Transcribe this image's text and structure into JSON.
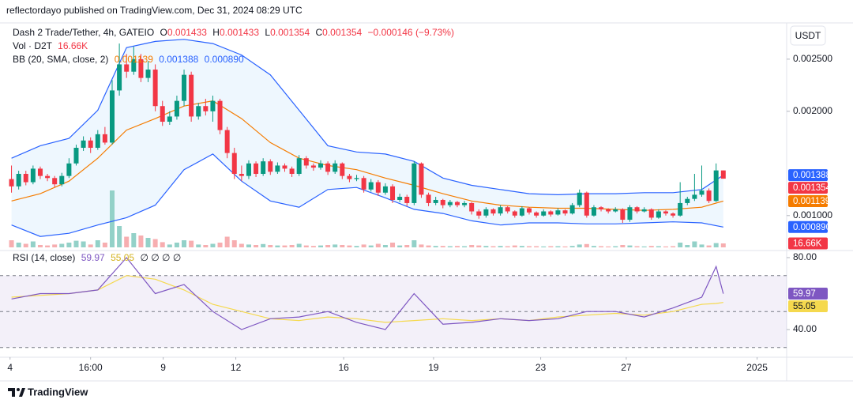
{
  "page": {
    "published": "reflectordayo published on TradingView.com, Dec 31, 2024 08:29 UTC",
    "brand": "TradingView"
  },
  "chart_data": [
    {
      "type": "candlestick",
      "title": "Dash 2 Trade/Tether, 4h, GATEIO",
      "ohlc_keys": [
        "O",
        "H",
        "L",
        "C"
      ],
      "change": "−0.000146 (−9.73%)",
      "currency": "USDT",
      "xlim": [
        -0.5,
        107.7
      ],
      "xticks": [
        {
          "value": -0.2,
          "label": "4"
        },
        {
          "value": 11,
          "label": "16:00"
        },
        {
          "value": 21.1,
          "label": "9"
        },
        {
          "value": 31.2,
          "label": "12"
        },
        {
          "value": 46.2,
          "label": "16"
        },
        {
          "value": 58.7,
          "label": "19"
        },
        {
          "value": 73.6,
          "label": "23"
        },
        {
          "value": 85.5,
          "label": "27"
        },
        {
          "value": 103.7,
          "label": "2025"
        }
      ],
      "ylim": [
        0.00068,
        0.00284
      ],
      "yticks": [
        {
          "value": 0.0025,
          "label": "0.002500"
        },
        {
          "value": 0.002,
          "label": "0.002000"
        },
        {
          "value": 0.001,
          "label": "0.001000"
        }
      ],
      "up_color": "#089981",
      "down_color": "#f23645",
      "candles": [
        [
          0.00135,
          0.00148,
          0.00122,
          0.00128
        ],
        [
          0.00128,
          0.00143,
          0.00125,
          0.0014
        ],
        [
          0.0014,
          0.00143,
          0.00129,
          0.00132
        ],
        [
          0.00132,
          0.00148,
          0.0013,
          0.00145
        ],
        [
          0.00145,
          0.00147,
          0.00135,
          0.00138
        ],
        [
          0.00138,
          0.0014,
          0.00133,
          0.00136
        ],
        [
          0.00136,
          0.00138,
          0.00127,
          0.0013
        ],
        [
          0.0013,
          0.00141,
          0.00128,
          0.00138
        ],
        [
          0.00138,
          0.00155,
          0.00136,
          0.0015
        ],
        [
          0.0015,
          0.00168,
          0.00148,
          0.00165
        ],
        [
          0.00165,
          0.00176,
          0.00162,
          0.00172
        ],
        [
          0.00172,
          0.00175,
          0.0016,
          0.00165
        ],
        [
          0.00165,
          0.00182,
          0.00163,
          0.00178
        ],
        [
          0.00178,
          0.00185,
          0.00168,
          0.0017
        ],
        [
          0.0017,
          0.0023,
          0.00168,
          0.0022
        ],
        [
          0.0022,
          0.00265,
          0.00215,
          0.00245
        ],
        [
          0.00245,
          0.00255,
          0.00232,
          0.00238
        ],
        [
          0.00238,
          0.00262,
          0.00235,
          0.0025
        ],
        [
          0.0025,
          0.00255,
          0.00228,
          0.00232
        ],
        [
          0.00232,
          0.00248,
          0.00228,
          0.0024
        ],
        [
          0.0024,
          0.00245,
          0.002,
          0.00205
        ],
        [
          0.00205,
          0.0021,
          0.00186,
          0.0019
        ],
        [
          0.0019,
          0.002,
          0.00187,
          0.00195
        ],
        [
          0.00195,
          0.00215,
          0.00192,
          0.0021
        ],
        [
          0.0021,
          0.0024,
          0.00205,
          0.00235
        ],
        [
          0.00235,
          0.00238,
          0.0019,
          0.00195
        ],
        [
          0.00195,
          0.00208,
          0.00192,
          0.00205
        ],
        [
          0.00205,
          0.00212,
          0.00196,
          0.002
        ],
        [
          0.002,
          0.00215,
          0.0019,
          0.0021
        ],
        [
          0.0021,
          0.00212,
          0.00178,
          0.00182
        ],
        [
          0.00182,
          0.00185,
          0.00155,
          0.0016
        ],
        [
          0.0016,
          0.00165,
          0.00135,
          0.0014
        ],
        [
          0.0014,
          0.00148,
          0.00133,
          0.00138
        ],
        [
          0.00138,
          0.00153,
          0.00135,
          0.0015
        ],
        [
          0.0015,
          0.00152,
          0.00137,
          0.0014
        ],
        [
          0.0014,
          0.00155,
          0.00138,
          0.00152
        ],
        [
          0.00152,
          0.00154,
          0.00139,
          0.00142
        ],
        [
          0.00142,
          0.00151,
          0.0014,
          0.00148
        ],
        [
          0.00148,
          0.0015,
          0.00142,
          0.00145
        ],
        [
          0.00145,
          0.00147,
          0.00137,
          0.0014
        ],
        [
          0.0014,
          0.00158,
          0.00138,
          0.00155
        ],
        [
          0.00155,
          0.00157,
          0.00145,
          0.00148
        ],
        [
          0.00148,
          0.0015,
          0.00143,
          0.00146
        ],
        [
          0.00146,
          0.00153,
          0.00144,
          0.0015
        ],
        [
          0.0015,
          0.00152,
          0.00139,
          0.00142
        ],
        [
          0.00142,
          0.00153,
          0.0014,
          0.0015
        ],
        [
          0.0015,
          0.00151,
          0.00135,
          0.00138
        ],
        [
          0.00138,
          0.0014,
          0.00132,
          0.00135
        ],
        [
          0.00135,
          0.00139,
          0.00133,
          0.00136
        ],
        [
          0.00136,
          0.00138,
          0.00122,
          0.00125
        ],
        [
          0.00125,
          0.00135,
          0.00123,
          0.00132
        ],
        [
          0.00132,
          0.00134,
          0.00119,
          0.00122
        ],
        [
          0.00122,
          0.00131,
          0.0012,
          0.00128
        ],
        [
          0.00128,
          0.0013,
          0.00112,
          0.00115
        ],
        [
          0.00115,
          0.00121,
          0.00113,
          0.00118
        ],
        [
          0.00118,
          0.0012,
          0.00109,
          0.00112
        ],
        [
          0.00112,
          0.00152,
          0.0011,
          0.0015
        ],
        [
          0.0015,
          0.00151,
          0.00117,
          0.0012
        ],
        [
          0.0012,
          0.00122,
          0.00109,
          0.00112
        ],
        [
          0.00112,
          0.00118,
          0.0011,
          0.00115
        ],
        [
          0.00115,
          0.00116,
          0.00107,
          0.0011
        ],
        [
          0.0011,
          0.00115,
          0.00108,
          0.00113
        ],
        [
          0.00113,
          0.00114,
          0.00108,
          0.0011
        ],
        [
          0.0011,
          0.00114,
          0.00108,
          0.00112
        ],
        [
          0.00112,
          0.00113,
          0.00101,
          0.00104
        ],
        [
          0.00104,
          0.00106,
          0.00097,
          0.001
        ],
        [
          0.001,
          0.00108,
          0.00098,
          0.00106
        ],
        [
          0.00106,
          0.00107,
          0.001,
          0.00102
        ],
        [
          0.00102,
          0.0011,
          0.001,
          0.00108
        ],
        [
          0.00108,
          0.00109,
          0.00102,
          0.00104
        ],
        [
          0.00104,
          0.00105,
          0.00098,
          0.001
        ],
        [
          0.001,
          0.00109,
          0.00099,
          0.00107
        ],
        [
          0.00107,
          0.00108,
          0.00101,
          0.00103
        ],
        [
          0.00103,
          0.00104,
          0.00098,
          0.001
        ],
        [
          0.001,
          0.00106,
          0.00099,
          0.00104
        ],
        [
          0.00104,
          0.00105,
          0.00099,
          0.00101
        ],
        [
          0.00101,
          0.00107,
          0.001,
          0.00105
        ],
        [
          0.00105,
          0.00106,
          0.001,
          0.00102
        ],
        [
          0.00102,
          0.00112,
          0.00101,
          0.0011
        ],
        [
          0.0011,
          0.00125,
          0.00108,
          0.00122
        ],
        [
          0.00122,
          0.00123,
          0.00098,
          0.001
        ],
        [
          0.001,
          0.0011,
          0.00099,
          0.00108
        ],
        [
          0.00108,
          0.00109,
          0.00104,
          0.00106
        ],
        [
          0.00106,
          0.00107,
          0.00102,
          0.00104
        ],
        [
          0.00104,
          0.00108,
          0.00103,
          0.00106
        ],
        [
          0.00106,
          0.00107,
          0.00093,
          0.00096
        ],
        [
          0.00096,
          0.0011,
          0.00094,
          0.00108
        ],
        [
          0.00108,
          0.00109,
          0.00102,
          0.00104
        ],
        [
          0.00104,
          0.00108,
          0.00103,
          0.00106
        ],
        [
          0.00106,
          0.00107,
          0.00096,
          0.00098
        ],
        [
          0.00098,
          0.00106,
          0.00097,
          0.00104
        ],
        [
          0.00104,
          0.00105,
          0.001,
          0.00102
        ],
        [
          0.00102,
          0.00103,
          0.00098,
          0.001
        ],
        [
          0.001,
          0.00132,
          0.00099,
          0.00112
        ],
        [
          0.00112,
          0.00118,
          0.0011,
          0.00116
        ],
        [
          0.00116,
          0.0014,
          0.00114,
          0.0012
        ],
        [
          0.0012,
          0.00148,
          0.00118,
          0.00124
        ],
        [
          0.00124,
          0.00126,
          0.00112,
          0.00114
        ],
        [
          0.00114,
          0.0015,
          0.00113,
          0.001433
        ],
        [
          0.001433,
          0.001433,
          0.001354,
          0.001354
        ]
      ],
      "volume": {
        "name": "Vol · D2T",
        "ylim": [
          0,
          250
        ],
        "up_color": "#93d1c8",
        "down_color": "#f7aeb0",
        "last_label": "16.66K",
        "values": [
          30,
          20,
          15,
          25,
          10,
          8,
          12,
          15,
          20,
          28,
          25,
          12,
          30,
          20,
          240,
          90,
          45,
          60,
          50,
          40,
          35,
          22,
          12,
          20,
          30,
          28,
          12,
          10,
          15,
          20,
          45,
          30,
          15,
          12,
          10,
          14,
          10,
          8,
          8,
          10,
          15,
          8,
          6,
          8,
          10,
          12,
          10,
          8,
          6,
          12,
          8,
          15,
          10,
          20,
          8,
          10,
          30,
          12,
          8,
          6,
          6,
          5,
          6,
          5,
          10,
          8,
          6,
          5,
          6,
          5,
          8,
          6,
          5,
          5,
          4,
          5,
          5,
          4,
          6,
          12,
          14,
          6,
          5,
          4,
          5,
          10,
          8,
          5,
          4,
          6,
          5,
          4,
          5,
          20,
          10,
          25,
          12,
          8,
          18,
          16.66
        ]
      },
      "bb": {
        "name": "BB (20, SMA, close, 2)",
        "fill": "rgba(33,150,243,0.08)",
        "x": [
          0,
          4,
          8,
          12,
          16,
          20,
          24,
          28,
          32,
          36,
          40,
          44,
          48,
          52,
          56,
          60,
          64,
          68,
          72,
          76,
          80,
          84,
          88,
          92,
          96,
          99
        ],
        "basis": {
          "color": "#f57c00",
          "values": [
            0.00114,
            0.00121,
            0.00133,
            0.00155,
            0.00182,
            0.00193,
            0.00205,
            0.0021,
            0.00193,
            0.0017,
            0.00155,
            0.00148,
            0.00144,
            0.00136,
            0.00129,
            0.00121,
            0.00114,
            0.0011,
            0.00108,
            0.00107,
            0.00107,
            0.00106,
            0.00105,
            0.00106,
            0.00108,
            0.001139
          ]
        },
        "upper": {
          "color": "#2962ff",
          "values": [
            0.00155,
            0.00167,
            0.00174,
            0.00201,
            0.00261,
            0.00267,
            0.00269,
            0.00265,
            0.00254,
            0.00235,
            0.00201,
            0.00167,
            0.00161,
            0.00159,
            0.00152,
            0.00136,
            0.00129,
            0.00125,
            0.00121,
            0.0012,
            0.00121,
            0.00121,
            0.00122,
            0.00122,
            0.00125,
            0.001388
          ]
        },
        "lower": {
          "color": "#2962ff",
          "last_label": "0.000890",
          "values": [
            0.00091,
            0.0008,
            0.00083,
            0.00091,
            0.00098,
            0.0011,
            0.00144,
            0.00159,
            0.00133,
            0.00114,
            0.00108,
            0.00125,
            0.00127,
            0.00117,
            0.00106,
            0.00102,
            0.00095,
            0.00091,
            0.00093,
            0.00093,
            0.00092,
            0.00092,
            0.00093,
            0.00094,
            0.00093,
            0.00089
          ]
        }
      }
    },
    {
      "type": "line",
      "title": "RSI (14, close)",
      "legend_extra": "∅ ∅ ∅ ∅",
      "x": [
        0,
        4,
        8,
        12,
        16,
        20,
        24,
        28,
        32,
        36,
        40,
        44,
        48,
        52,
        56,
        60,
        64,
        68,
        72,
        76,
        80,
        84,
        88,
        92,
        96,
        98,
        99
      ],
      "series": [
        {
          "color": "#7e57c2",
          "values": [
            57,
            60,
            60,
            62,
            80,
            60,
            65,
            50,
            40,
            46,
            47,
            50,
            44,
            40,
            60,
            43,
            44,
            46,
            45,
            46,
            50,
            50,
            47,
            52,
            58,
            75,
            59.97
          ]
        },
        {
          "color": "#f5d94e",
          "values": [
            58,
            59,
            60,
            62,
            70,
            68,
            62,
            54,
            50,
            46,
            45,
            47,
            46,
            44,
            45,
            46,
            45,
            46,
            45,
            47,
            48,
            49,
            48,
            50,
            54,
            54.5,
            55.05
          ]
        }
      ],
      "ylim": [
        25.5,
        83.5
      ],
      "yticks": [
        {
          "value": 80,
          "label": "80.00"
        },
        {
          "value": 40,
          "label": "40.00"
        }
      ],
      "bands": [
        70,
        50,
        30
      ],
      "band_fill": "rgba(126,87,194,0.09)"
    }
  ]
}
